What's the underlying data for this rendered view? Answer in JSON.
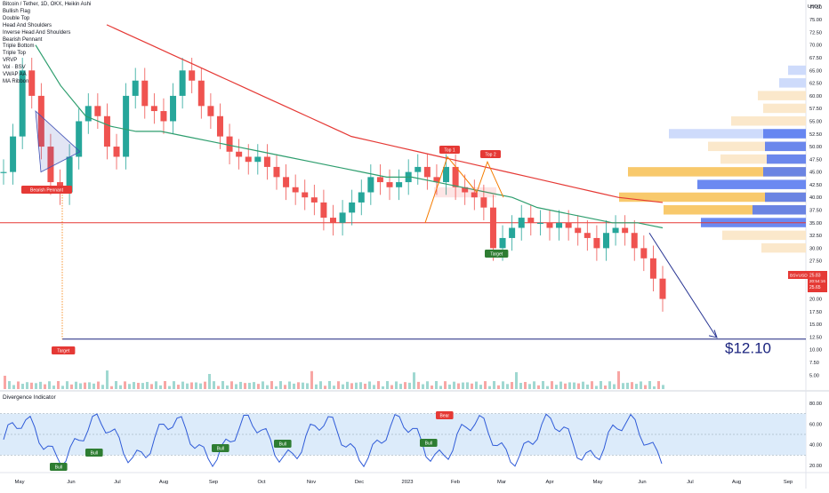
{
  "chart_data": {
    "type": "candlestick",
    "title": "Bitcoin / Tether, 1D, OKX, Heikin Ashi",
    "currency": "USDT",
    "ticker_badge": "BSVUSDT",
    "price_now": "25.83",
    "countdown": "20:54:16",
    "price_badge2": "25.65",
    "indicators": [
      "Bullish Flag",
      "Double Top",
      "Head And Shoulders",
      "Inverse Head And Shoulders",
      "Bearish Pennant",
      "Triple Bottom",
      "Triple Top",
      "VRVP",
      "Vol · BSV",
      "VWAP AA",
      "MA Ribbon"
    ],
    "y_axis_ticks": [
      "77.50",
      "75.00",
      "72.50",
      "70.00",
      "67.50",
      "65.00",
      "62.50",
      "60.00",
      "57.50",
      "55.00",
      "52.50",
      "50.00",
      "47.50",
      "45.00",
      "42.50",
      "40.00",
      "37.50",
      "35.00",
      "32.50",
      "30.00",
      "27.50",
      "25.00",
      "22.50",
      "20.00",
      "17.50",
      "15.00",
      "12.50",
      "10.00",
      "7.50",
      "5.00"
    ],
    "x_axis_ticks": [
      "May",
      "Jun",
      "Jul",
      "Aug",
      "Sep",
      "Oct",
      "Nov",
      "Dec",
      "2023",
      "Feb",
      "Mar",
      "Apr",
      "May",
      "Jun",
      "Jul",
      "Aug",
      "Sep"
    ],
    "annotations": {
      "bearish_pennant": "Bearish Pennant",
      "target_left": "Target",
      "target_mid": "Target",
      "top1": "Top 1",
      "top2": "Top 2",
      "price_target": "$12.10"
    },
    "oscillator": {
      "name": "Divergence Indicator",
      "ticks": [
        "80.00",
        "60.00",
        "40.00",
        "20.00"
      ],
      "bear_label": "Bear",
      "bull_label": "Bull"
    },
    "horizontal_support": 35.0,
    "target_level": 12.1,
    "price_series": [
      45,
      52,
      65,
      60,
      50,
      43,
      41,
      48,
      55,
      58,
      56,
      50,
      48,
      60,
      63,
      58,
      57,
      55,
      60,
      65,
      63,
      58,
      56,
      52,
      49,
      48,
      47,
      48,
      46,
      44,
      42,
      41,
      40,
      39,
      36,
      35,
      37,
      39,
      41,
      44,
      43,
      42,
      43,
      45,
      46,
      44,
      43,
      46,
      42,
      41,
      40,
      38,
      30,
      32,
      34,
      36,
      35,
      35,
      34,
      35,
      34,
      33,
      32,
      30,
      33,
      34,
      33,
      30,
      28,
      24,
      20
    ]
  },
  "colors": {
    "up": "#26a69a",
    "down": "#ef5350",
    "ma_fast": "#2e9e6e",
    "ma_slow": "#e53935",
    "support": "#e53935",
    "target_line": "#1a237e",
    "arrow": "#283593",
    "osc_line": "#2f5bd8",
    "osc_band": "#dcebfa",
    "vol_bar_up": "#5c9bd6",
    "vol_bar_down": "#f7c35c"
  }
}
